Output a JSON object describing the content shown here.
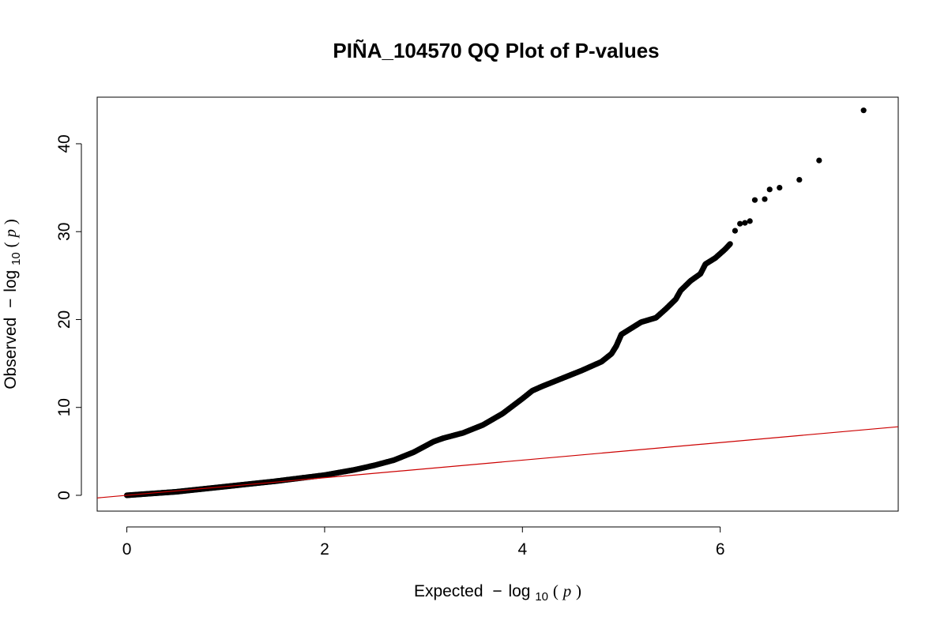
{
  "chart_data": {
    "type": "scatter",
    "title": "PIÑA_104570 QQ Plot of P-values",
    "xlabel": {
      "prefix": "Expected",
      "minus": "−",
      "log": "log",
      "sub": "10",
      "lparen": "(",
      "var": "p",
      "rparen": ")"
    },
    "ylabel": {
      "prefix": "Observed",
      "minus": "−",
      "log": "log",
      "sub": "10",
      "lparen": "(",
      "var": "p",
      "rparen": ")"
    },
    "xlim": [
      -0.3,
      7.8
    ],
    "ylim": [
      -1.8,
      45.3
    ],
    "x_ticks": [
      0,
      2,
      4,
      6
    ],
    "x_tick_labels": [
      "0",
      "2",
      "4",
      "6"
    ],
    "y_ticks": [
      0,
      10,
      20,
      30,
      40
    ],
    "y_tick_labels": [
      "0",
      "10",
      "20",
      "30",
      "40"
    ],
    "grid": false,
    "series": [
      {
        "point_color": "#000000",
        "curve": [
          [
            0.0,
            0.0
          ],
          [
            0.5,
            0.4
          ],
          [
            1.0,
            1.0
          ],
          [
            1.5,
            1.6
          ],
          [
            2.0,
            2.3
          ],
          [
            2.3,
            2.9
          ],
          [
            2.5,
            3.4
          ],
          [
            2.7,
            4.0
          ],
          [
            2.9,
            4.9
          ],
          [
            3.0,
            5.5
          ],
          [
            3.1,
            6.1
          ],
          [
            3.2,
            6.5
          ],
          [
            3.4,
            7.1
          ],
          [
            3.6,
            8.0
          ],
          [
            3.8,
            9.3
          ],
          [
            4.0,
            11.0
          ],
          [
            4.1,
            11.9
          ],
          [
            4.2,
            12.4
          ],
          [
            4.4,
            13.3
          ],
          [
            4.6,
            14.2
          ],
          [
            4.8,
            15.2
          ],
          [
            4.9,
            16.1
          ],
          [
            4.95,
            17.0
          ],
          [
            5.0,
            18.3
          ],
          [
            5.1,
            19.0
          ],
          [
            5.2,
            19.7
          ],
          [
            5.35,
            20.2
          ],
          [
            5.45,
            21.2
          ],
          [
            5.55,
            22.3
          ],
          [
            5.6,
            23.3
          ],
          [
            5.7,
            24.4
          ],
          [
            5.8,
            25.2
          ],
          [
            5.85,
            26.3
          ],
          [
            5.95,
            27.0
          ],
          [
            6.05,
            28.0
          ],
          [
            6.1,
            28.6
          ]
        ],
        "outliers": [
          [
            6.15,
            30.1
          ],
          [
            6.2,
            30.9
          ],
          [
            6.25,
            31.0
          ],
          [
            6.3,
            31.2
          ],
          [
            6.35,
            33.6
          ],
          [
            6.45,
            33.7
          ],
          [
            6.5,
            34.8
          ],
          [
            6.6,
            35.0
          ],
          [
            6.8,
            35.9
          ],
          [
            7.0,
            38.1
          ],
          [
            7.45,
            43.8
          ]
        ]
      }
    ],
    "reference_line": {
      "intercept": 0,
      "slope": 1,
      "color": "#cc0000"
    }
  }
}
